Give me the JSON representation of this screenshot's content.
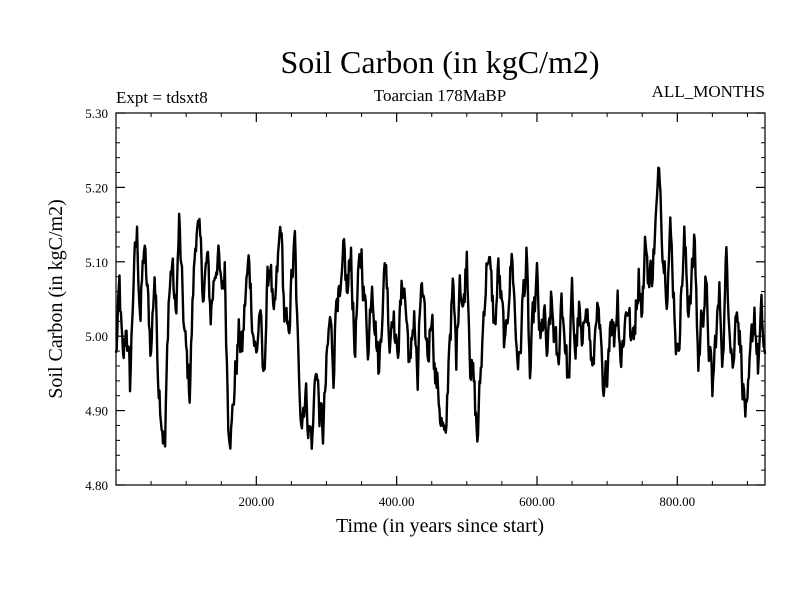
{
  "chart_data": {
    "type": "line",
    "title": "Soil Carbon (in kgC/m2)",
    "subtitle": "Toarcian 178MaBP",
    "left_annotation": "Expt = tdsxt8",
    "right_annotation": "ALL_MONTHS",
    "xlabel": "Time (in years since start)",
    "ylabel": "Soil Carbon (in kgC/m2)",
    "xlim": [
      0,
      925
    ],
    "ylim": [
      4.8,
      5.3
    ],
    "x_ticks": [
      200,
      400,
      600,
      800
    ],
    "x_tick_labels": [
      "200.00",
      "400.00",
      "600.00",
      "800.00"
    ],
    "y_ticks": [
      4.8,
      4.9,
      5.0,
      5.1,
      5.2,
      5.3
    ],
    "y_tick_labels": [
      "4.80",
      "4.90",
      "5.00",
      "5.10",
      "5.20",
      "5.30"
    ],
    "series": [
      {
        "name": "tdsxt8",
        "color": "#000000",
        "x_start": 0,
        "x_step": 1,
        "anchors": [
          [
            0,
            4.97
          ],
          [
            5,
            5.06
          ],
          [
            10,
            4.95
          ],
          [
            15,
            5.02
          ],
          [
            20,
            4.93
          ],
          [
            25,
            5.08
          ],
          [
            30,
            5.13
          ],
          [
            35,
            5.03
          ],
          [
            40,
            5.12
          ],
          [
            45,
            5.05
          ],
          [
            50,
            4.98
          ],
          [
            55,
            5.09
          ],
          [
            60,
            4.96
          ],
          [
            65,
            4.9
          ],
          [
            70,
            4.85
          ],
          [
            75,
            5.05
          ],
          [
            80,
            5.1
          ],
          [
            85,
            5.02
          ],
          [
            90,
            5.15
          ],
          [
            95,
            5.04
          ],
          [
            100,
            4.97
          ],
          [
            105,
            4.93
          ],
          [
            110,
            5.06
          ],
          [
            115,
            5.16
          ],
          [
            120,
            5.11
          ],
          [
            125,
            5.06
          ],
          [
            130,
            5.1
          ],
          [
            135,
            5.03
          ],
          [
            140,
            5.08
          ],
          [
            145,
            5.12
          ],
          [
            150,
            5.05
          ],
          [
            155,
            5.09
          ],
          [
            160,
            4.9
          ],
          [
            165,
            4.88
          ],
          [
            170,
            4.95
          ],
          [
            175,
            5.0
          ],
          [
            180,
            4.98
          ],
          [
            185,
            5.06
          ],
          [
            190,
            5.1
          ],
          [
            195,
            5.02
          ],
          [
            200,
            4.97
          ],
          [
            205,
            5.04
          ],
          [
            210,
            4.93
          ],
          [
            215,
            5.05
          ],
          [
            220,
            5.11
          ],
          [
            225,
            5.0
          ],
          [
            230,
            5.08
          ],
          [
            235,
            5.15
          ],
          [
            240,
            5.03
          ],
          [
            245,
            4.99
          ],
          [
            250,
            5.07
          ],
          [
            255,
            5.12
          ],
          [
            260,
            4.95
          ],
          [
            265,
            4.9
          ],
          [
            270,
            4.93
          ],
          [
            275,
            4.88
          ],
          [
            280,
            4.86
          ],
          [
            285,
            4.97
          ],
          [
            290,
            4.9
          ],
          [
            295,
            4.87
          ],
          [
            300,
            4.95
          ],
          [
            305,
            5.02
          ],
          [
            310,
            4.96
          ],
          [
            315,
            5.08
          ],
          [
            320,
            5.03
          ],
          [
            325,
            5.1
          ],
          [
            330,
            5.05
          ],
          [
            335,
            5.12
          ],
          [
            340,
            4.98
          ],
          [
            345,
            5.06
          ],
          [
            350,
            5.11
          ],
          [
            355,
            5.04
          ],
          [
            360,
            4.99
          ],
          [
            365,
            5.09
          ],
          [
            370,
            5.02
          ],
          [
            375,
            4.95
          ],
          [
            380,
            5.06
          ],
          [
            385,
            5.1
          ],
          [
            390,
            5.0
          ],
          [
            395,
            5.05
          ],
          [
            400,
            4.97
          ],
          [
            405,
            5.03
          ],
          [
            410,
            5.08
          ],
          [
            415,
            5.01
          ],
          [
            420,
            4.95
          ],
          [
            425,
            5.04
          ],
          [
            430,
            4.93
          ],
          [
            435,
            5.07
          ],
          [
            440,
            5.0
          ],
          [
            445,
            4.97
          ],
          [
            450,
            5.05
          ],
          [
            455,
            4.95
          ],
          [
            460,
            4.92
          ],
          [
            465,
            4.88
          ],
          [
            470,
            4.84
          ],
          [
            475,
            5.0
          ],
          [
            480,
            5.06
          ],
          [
            485,
            4.97
          ],
          [
            490,
            5.1
          ],
          [
            495,
            5.03
          ],
          [
            500,
            5.12
          ],
          [
            505,
            4.98
          ],
          [
            510,
            4.93
          ],
          [
            515,
            4.86
          ],
          [
            520,
            4.95
          ],
          [
            525,
            5.05
          ],
          [
            530,
            5.12
          ],
          [
            535,
            5.06
          ],
          [
            540,
            5.01
          ],
          [
            545,
            5.09
          ],
          [
            550,
            5.03
          ],
          [
            555,
            4.97
          ],
          [
            560,
            5.07
          ],
          [
            565,
            5.11
          ],
          [
            570,
            5.0
          ],
          [
            575,
            4.96
          ],
          [
            580,
            5.05
          ],
          [
            585,
            5.1
          ],
          [
            590,
            4.94
          ],
          [
            595,
            5.02
          ],
          [
            600,
            5.07
          ],
          [
            605,
            4.98
          ],
          [
            610,
            5.03
          ],
          [
            615,
            4.96
          ],
          [
            620,
            5.04
          ],
          [
            625,
            5.0
          ],
          [
            630,
            4.95
          ],
          [
            635,
            5.06
          ],
          [
            640,
            5.0
          ],
          [
            645,
            4.93
          ],
          [
            650,
            5.05
          ],
          [
            655,
            4.98
          ],
          [
            660,
            5.03
          ],
          [
            665,
            4.96
          ],
          [
            670,
            5.07
          ],
          [
            675,
            5.0
          ],
          [
            680,
            4.94
          ],
          [
            685,
            5.05
          ],
          [
            690,
            4.99
          ],
          [
            695,
            4.89
          ],
          [
            700,
            4.96
          ],
          [
            705,
            5.04
          ],
          [
            710,
            5.0
          ],
          [
            715,
            5.06
          ],
          [
            720,
            4.97
          ],
          [
            725,
            5.02
          ],
          [
            730,
            5.05
          ],
          [
            735,
            4.98
          ],
          [
            740,
            5.03
          ],
          [
            745,
            5.09
          ],
          [
            750,
            5.04
          ],
          [
            755,
            5.13
          ],
          [
            760,
            5.07
          ],
          [
            765,
            5.1
          ],
          [
            770,
            5.16
          ],
          [
            775,
            5.22
          ],
          [
            780,
            5.12
          ],
          [
            785,
            5.08
          ],
          [
            790,
            5.14
          ],
          [
            795,
            5.06
          ],
          [
            800,
            4.97
          ],
          [
            805,
            5.05
          ],
          [
            810,
            5.13
          ],
          [
            815,
            5.04
          ],
          [
            820,
            5.08
          ],
          [
            825,
            5.12
          ],
          [
            830,
            4.96
          ],
          [
            835,
            5.03
          ],
          [
            840,
            5.07
          ],
          [
            845,
            4.99
          ],
          [
            850,
            4.92
          ],
          [
            855,
            5.0
          ],
          [
            860,
            5.05
          ],
          [
            865,
            4.98
          ],
          [
            870,
            5.1
          ],
          [
            875,
            5.03
          ],
          [
            880,
            4.96
          ],
          [
            885,
            5.06
          ],
          [
            890,
            4.99
          ],
          [
            895,
            4.92
          ],
          [
            900,
            4.88
          ],
          [
            905,
            4.97
          ],
          [
            910,
            5.04
          ],
          [
            915,
            4.96
          ],
          [
            920,
            5.02
          ],
          [
            925,
            4.97
          ]
        ],
        "noise_amplitude": 0.025
      }
    ]
  }
}
